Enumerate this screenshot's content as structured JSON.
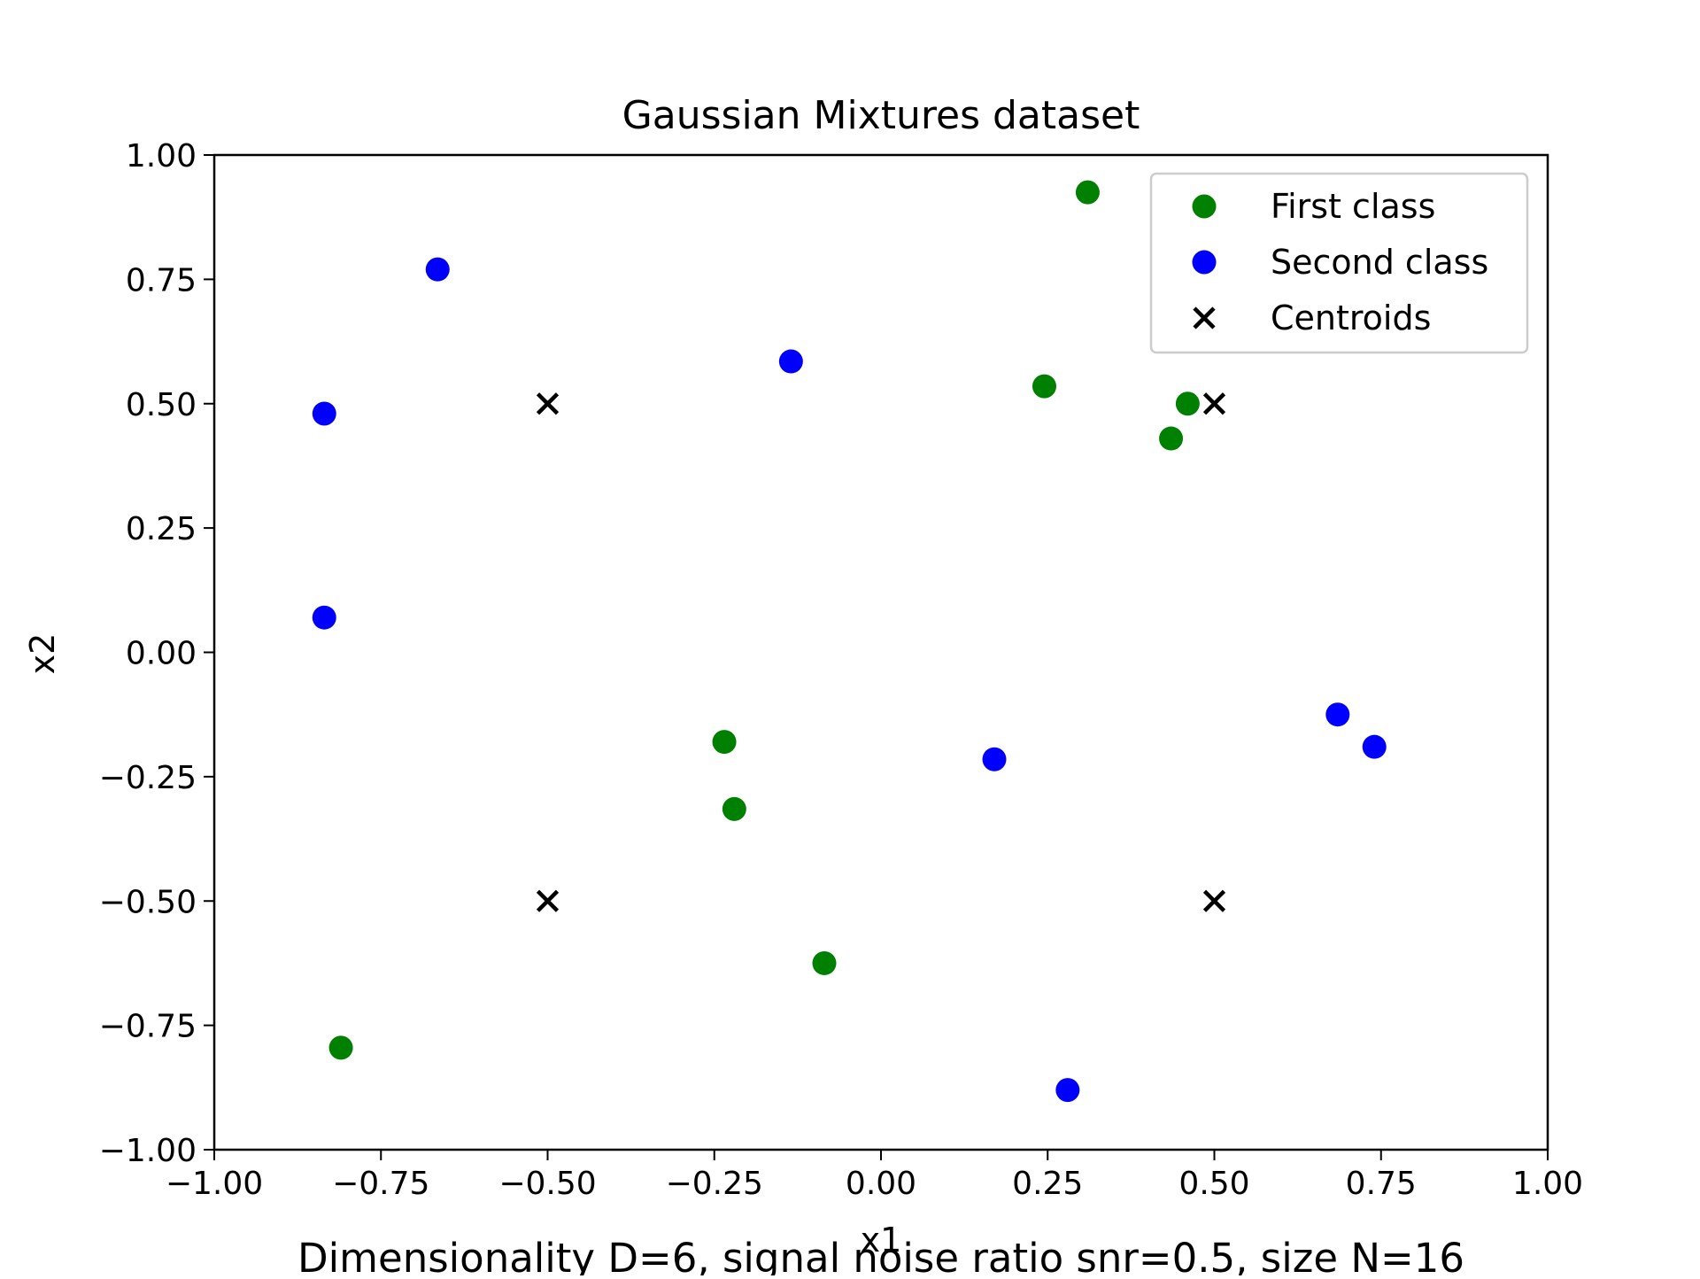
{
  "chart_data": {
    "type": "scatter",
    "title": "Gaussian Mixtures dataset",
    "xlabel": "x1",
    "ylabel": "x2",
    "caption": "Dimensionality D=6, signal noise ratio snr=0.5, size N=16",
    "xlim": [
      -1.0,
      1.0
    ],
    "ylim": [
      -1.0,
      1.0
    ],
    "xticks": [
      -1.0,
      -0.75,
      -0.5,
      -0.25,
      0.0,
      0.25,
      0.5,
      0.75,
      1.0
    ],
    "yticks": [
      -1.0,
      -0.75,
      -0.5,
      -0.25,
      0.0,
      0.25,
      0.5,
      0.75,
      1.0
    ],
    "xtick_labels": [
      "−1.00",
      "−0.75",
      "−0.50",
      "−0.25",
      "0.00",
      "0.25",
      "0.50",
      "0.75",
      "1.00"
    ],
    "ytick_labels": [
      "−1.00",
      "−0.75",
      "−0.50",
      "−0.25",
      "0.00",
      "0.25",
      "0.50",
      "0.75",
      "1.00"
    ],
    "grid": false,
    "legend_position": "top-right",
    "series": [
      {
        "name": "First class",
        "color": "#008000",
        "marker": "circle",
        "points": [
          [
            0.31,
            0.925
          ],
          [
            0.245,
            0.535
          ],
          [
            0.46,
            0.5
          ],
          [
            0.435,
            0.43
          ],
          [
            -0.235,
            -0.18
          ],
          [
            -0.22,
            -0.315
          ],
          [
            -0.085,
            -0.625
          ],
          [
            -0.81,
            -0.795
          ]
        ]
      },
      {
        "name": "Second class",
        "color": "#0000ff",
        "marker": "circle",
        "points": [
          [
            -0.665,
            0.77
          ],
          [
            -0.835,
            0.48
          ],
          [
            -0.835,
            0.07
          ],
          [
            -0.135,
            0.585
          ],
          [
            0.17,
            -0.215
          ],
          [
            0.685,
            -0.125
          ],
          [
            0.74,
            -0.19
          ],
          [
            0.28,
            -0.88
          ]
        ]
      },
      {
        "name": "Centroids",
        "color": "#000000",
        "marker": "x",
        "points": [
          [
            -0.5,
            0.5
          ],
          [
            0.5,
            0.5
          ],
          [
            -0.5,
            -0.5
          ],
          [
            0.5,
            -0.5
          ]
        ]
      }
    ]
  }
}
